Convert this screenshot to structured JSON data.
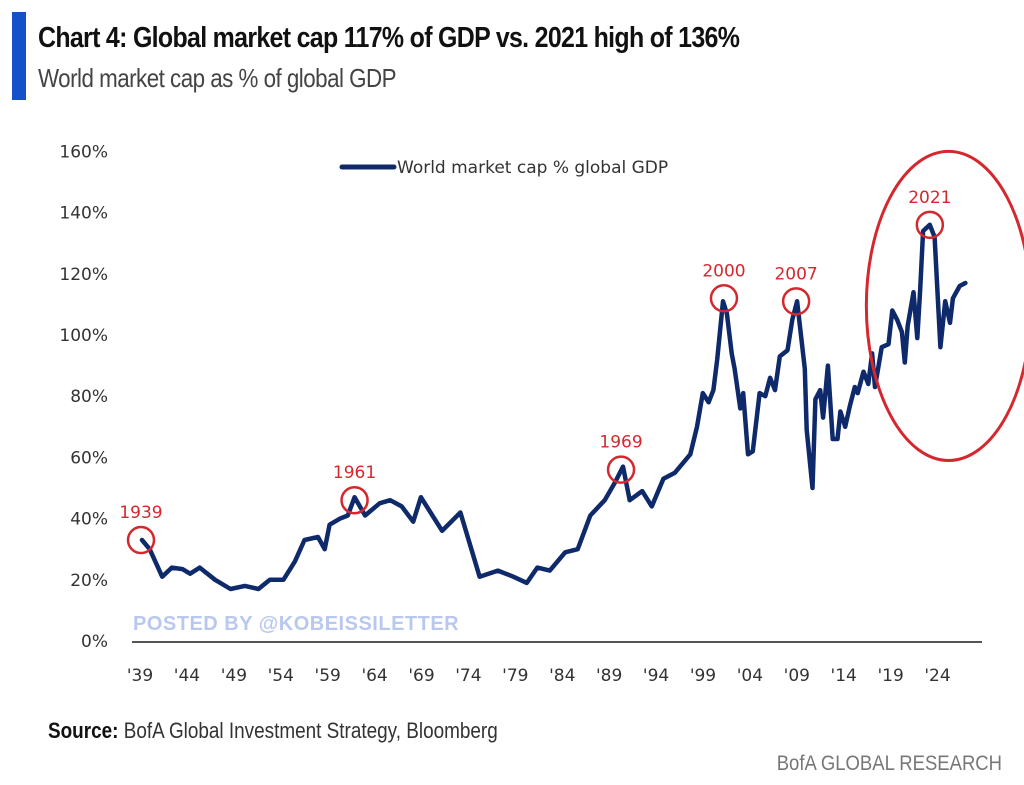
{
  "header": {
    "title": "Chart 4: Global market cap 117% of GDP vs. 2021 high of 136%",
    "subtitle": "World market cap as % of global GDP"
  },
  "footer": {
    "source_label": "Source:",
    "source_text": " BofA Global Investment Strategy, Bloomberg",
    "brand": "BofA GLOBAL RESEARCH"
  },
  "watermark": "POSTED BY @KOBEISSILETTER",
  "colors": {
    "accent": "#1450c8",
    "series": "#0f2a6b",
    "annotation": "#d4282f",
    "watermark": "#b9c8ee",
    "axis": "#555555"
  },
  "chart_data": {
    "type": "line",
    "title": "Chart 4: Global market cap 117% of GDP vs. 2021 high of 136%",
    "subtitle": "World market cap as % of global GDP",
    "xlabel": "",
    "ylabel": "",
    "ylim": [
      0,
      160
    ],
    "yticks": [
      0,
      20,
      40,
      60,
      80,
      100,
      120,
      140,
      160
    ],
    "ytick_labels": [
      "0%",
      "20%",
      "40%",
      "60%",
      "80%",
      "100%",
      "120%",
      "140%",
      "160%"
    ],
    "xlim": [
      1939,
      2025
    ],
    "xtick_labels": [
      "'39",
      "'44",
      "'49",
      "'54",
      "'59",
      "'64",
      "'69",
      "'74",
      "'79",
      "'84",
      "'89",
      "'94",
      "'99",
      "'04",
      "'09",
      "'14",
      "'19",
      "'24"
    ],
    "xtick_first": 1938.9,
    "xtick_last": 2021.8,
    "grid": false,
    "legend": {
      "position": "top-center",
      "entries": [
        "World market cap % global GDP"
      ]
    },
    "series": [
      {
        "name": "World market cap % global GDP",
        "x": [
          1939.1,
          1939.9,
          1941.2,
          1942.2,
          1943.3,
          1944.1,
          1945.1,
          1946.7,
          1948.3,
          1949.8,
          1951.2,
          1952.4,
          1953.8,
          1955.0,
          1956.0,
          1957.4,
          1958.1,
          1958.6,
          1959.7,
          1960.5,
          1961.2,
          1962.3,
          1963.8,
          1964.9,
          1966.1,
          1967.3,
          1968.1,
          1970.3,
          1972.2,
          1974.2,
          1976.1,
          1977.7,
          1979.1,
          1980.2,
          1981.5,
          1983.1,
          1984.4,
          1985.7,
          1987.2,
          1988.3,
          1989.1,
          1989.8,
          1991.1,
          1992.1,
          1993.3,
          1994.5,
          1996.1,
          1996.8,
          1997.4,
          1998.0,
          1998.5,
          1998.9,
          1999.5,
          1999.9,
          2000.4,
          2000.7,
          2001.3,
          2001.6,
          2002.1,
          2002.6,
          2003.3,
          2003.9,
          2004.4,
          2004.9,
          2005.4,
          2006.2,
          2006.7,
          2007.2,
          2008.0,
          2008.2,
          2008.8,
          2009.1,
          2009.6,
          2009.9,
          2010.4,
          2010.9,
          2011.4,
          2011.7,
          2012.2,
          2012.7,
          2013.2,
          2013.5,
          2014.1,
          2014.6,
          2015.0,
          2015.3,
          2016.0,
          2016.7,
          2017.1,
          2017.6,
          2018.1,
          2018.4,
          2018.7,
          2019.3,
          2019.7,
          2020.0,
          2020.3,
          2021.0,
          2021.5,
          2022.1,
          2022.6,
          2023.1,
          2023.4,
          2024.1,
          2024.7
        ],
        "values": [
          33,
          30,
          21,
          24,
          23.5,
          22,
          24,
          20,
          17,
          18,
          17,
          20,
          20,
          26,
          33,
          34,
          30,
          38,
          40,
          41,
          47,
          41,
          45,
          46,
          44,
          39,
          47,
          36,
          42,
          21,
          23,
          21,
          19,
          24,
          23,
          29,
          30,
          41,
          46,
          52,
          57,
          46,
          49,
          44,
          53,
          55,
          61,
          70,
          81,
          78,
          82,
          92,
          111,
          107,
          94,
          89,
          76,
          81,
          61,
          62,
          81,
          80,
          86,
          82,
          93,
          95,
          105,
          111,
          89,
          69,
          50,
          79,
          82,
          73,
          90,
          66,
          66,
          75,
          70,
          77,
          83,
          81,
          88,
          84,
          94,
          83,
          96,
          97,
          108,
          105,
          101,
          91,
          103,
          114,
          99,
          115,
          134,
          136,
          132,
          96,
          111,
          104,
          112,
          116,
          117
        ]
      }
    ],
    "annotations": [
      {
        "label": "1939",
        "x": 1939.0,
        "y": 33
      },
      {
        "label": "1961",
        "x": 1961.2,
        "y": 46
      },
      {
        "label": "1969",
        "x": 1988.9,
        "y": 56
      },
      {
        "label": "2000",
        "x": 1999.6,
        "y": 112
      },
      {
        "label": "2007",
        "x": 2007.1,
        "y": 111
      },
      {
        "label": "2021",
        "x": 2021.0,
        "y": 136
      }
    ],
    "highlight_region": {
      "x_range": [
        2014.4,
        2031.5
      ],
      "y_range": [
        59,
        160
      ],
      "shape": "ellipse"
    }
  }
}
